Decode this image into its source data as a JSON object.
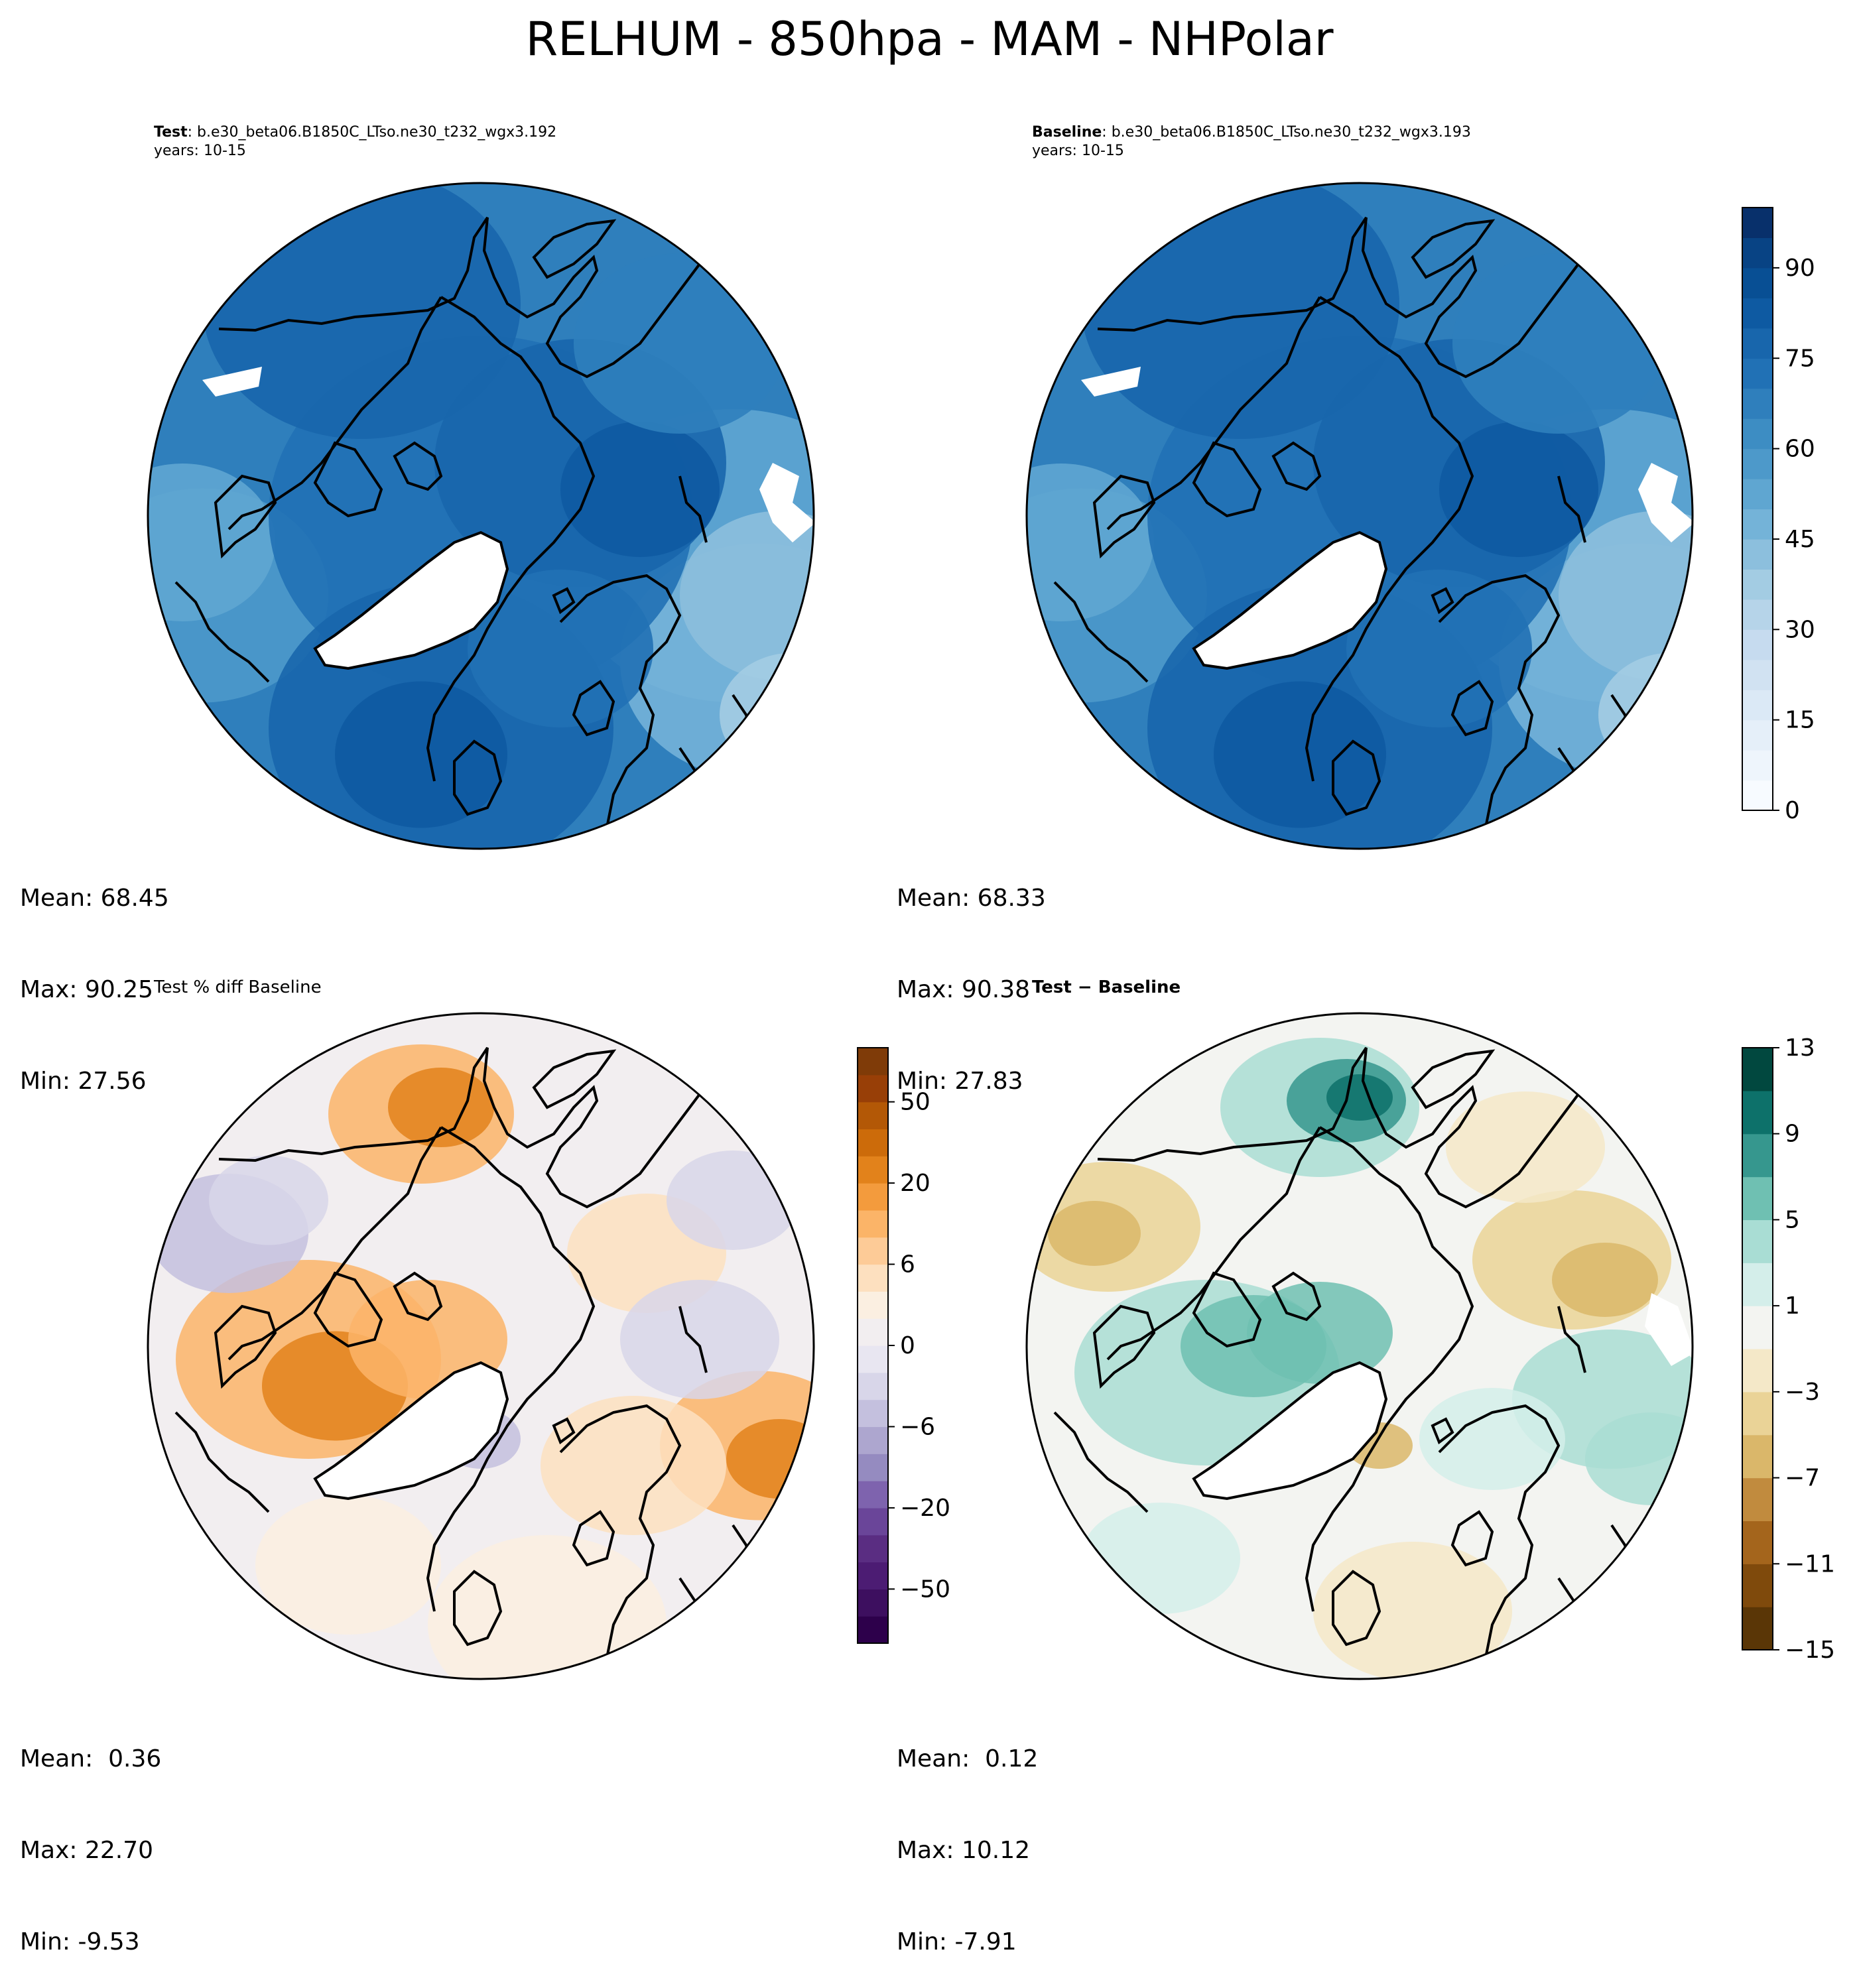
{
  "figure": {
    "title": "RELHUM - 850hpa - MAM - NHPolar"
  },
  "chart_data": [
    {
      "type": "heatmap",
      "projection": "north-polar-stereographic",
      "panel": "top-left",
      "title_bold": "Test",
      "title_rest": ": b.e30_beta06.B1850C_LTso.ne30_t232_wgx3.192",
      "subtitle": "years: 10-15",
      "stats": {
        "mean": "Mean: 68.45",
        "max": "Max: 90.25",
        "min": "Min: 27.56"
      },
      "colormap": "Blues",
      "shares_colorbar_with": "top-right"
    },
    {
      "type": "heatmap",
      "projection": "north-polar-stereographic",
      "panel": "top-right",
      "title_bold": "Baseline",
      "title_rest": ": b.e30_beta06.B1850C_LTso.ne30_t232_wgx3.193",
      "subtitle": "years: 10-15",
      "stats": {
        "mean": "Mean: 68.33",
        "max": "Max: 90.38",
        "min": "Min: 27.83"
      },
      "colormap": "Blues",
      "colorbar": {
        "range": [
          0,
          100
        ],
        "ticks": [
          "0",
          "15",
          "30",
          "45",
          "60",
          "75",
          "90"
        ],
        "tick_values": [
          0,
          15,
          30,
          45,
          60,
          75,
          90
        ],
        "levels": 20,
        "colors": [
          "#f7fbff",
          "#eef5fc",
          "#e5eff9",
          "#dbe9f6",
          "#d1e2f2",
          "#c6dbef",
          "#b6d4e9",
          "#a3cce3",
          "#8cbfdd",
          "#74b3d8",
          "#5fa6d1",
          "#4d99ca",
          "#3d8dc3",
          "#2f7fbc",
          "#2171b5",
          "#1866ac",
          "#0e5aa2",
          "#084f94",
          "#084384",
          "#08306b"
        ]
      }
    },
    {
      "type": "heatmap",
      "projection": "north-polar-stereographic",
      "panel": "bottom-left",
      "title_bold": "",
      "title_rest": "Test % diff Baseline",
      "subtitle": "",
      "stats": {
        "mean": "Mean:  0.36",
        "max": "Max: 22.70",
        "min": "Min: -9.53"
      },
      "colormap": "PuOr_r",
      "colorbar": {
        "range": [
          -100,
          100
        ],
        "ticks": [
          "−50",
          "−20",
          "−6",
          "0",
          "6",
          "20",
          "50"
        ],
        "levels": 22,
        "colors": [
          "#2d004b",
          "#3d0f5f",
          "#4c1c73",
          "#5a2d82",
          "#6a4599",
          "#7e63ae",
          "#958bc0",
          "#ada6cf",
          "#c4c0de",
          "#d8d6e9",
          "#e8e6f1",
          "#f2eef0",
          "#fbefe1",
          "#fde0bf",
          "#fdcb97",
          "#fbb468",
          "#f39b3d",
          "#e2821b",
          "#cc6b0a",
          "#b35806",
          "#983f07",
          "#7f3b08"
        ]
      }
    },
    {
      "type": "heatmap",
      "projection": "north-polar-stereographic",
      "panel": "bottom-right",
      "title_bold": "Test − Baseline",
      "title_rest": "",
      "subtitle": "",
      "stats": {
        "mean": "Mean:  0.12",
        "max": "Max: 10.12",
        "min": "Min: -7.91"
      },
      "colormap": "BrBG",
      "colorbar": {
        "range": [
          -15,
          13
        ],
        "ticks": [
          "−15",
          "−11",
          "−7",
          "−3",
          "1",
          "5",
          "9",
          "13"
        ],
        "tick_values": [
          -15,
          -11,
          -7,
          -3,
          1,
          5,
          9,
          13
        ],
        "levels": 14,
        "colors": [
          "#5a3606",
          "#7f4a0c",
          "#a4651c",
          "#c18b3e",
          "#dab76a",
          "#ead397",
          "#f4e8c8",
          "#f3f4f1",
          "#d4eeea",
          "#a9ddd4",
          "#6fc0b2",
          "#36978e",
          "#0d716a",
          "#01483f"
        ]
      }
    }
  ]
}
